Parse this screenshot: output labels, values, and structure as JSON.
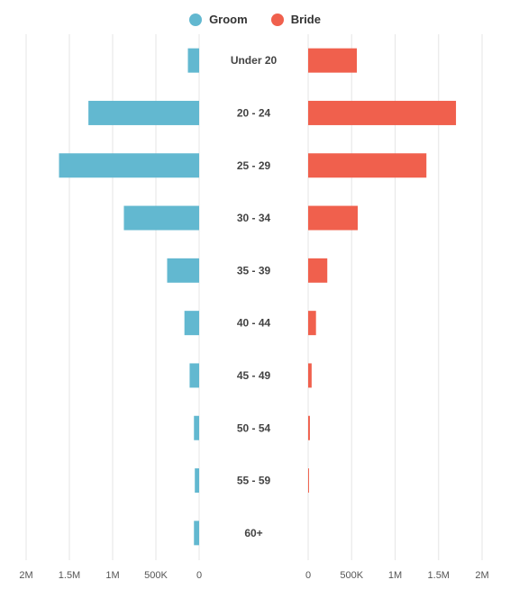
{
  "chart_data": {
    "type": "bar",
    "orientation": "horizontal-butterfly",
    "categories": [
      "Under 20",
      "20 - 24",
      "25 - 29",
      "30 - 34",
      "35 - 39",
      "40 - 44",
      "45 - 49",
      "50 - 54",
      "55 - 59",
      "60+"
    ],
    "series": [
      {
        "name": "Groom",
        "color": "#62b8d0",
        "values": [
          130000,
          1280000,
          1620000,
          870000,
          370000,
          170000,
          110000,
          60000,
          50000,
          60000
        ]
      },
      {
        "name": "Bride",
        "color": "#f0604d",
        "values": [
          560000,
          1700000,
          1360000,
          570000,
          220000,
          90000,
          40000,
          20000,
          10000,
          0
        ]
      }
    ],
    "xlim": [
      0,
      2000000
    ],
    "xticks_left": [
      "2M",
      "1.5M",
      "1M",
      "500K",
      "0"
    ],
    "xticks_right": [
      "0",
      "500K",
      "1M",
      "1.5M",
      "2M"
    ],
    "tick_values_left": [
      2000000,
      1500000,
      1000000,
      500000,
      0
    ],
    "tick_values_right": [
      0,
      500000,
      1000000,
      1500000,
      2000000
    ],
    "grid": true,
    "legend": "top-center"
  }
}
